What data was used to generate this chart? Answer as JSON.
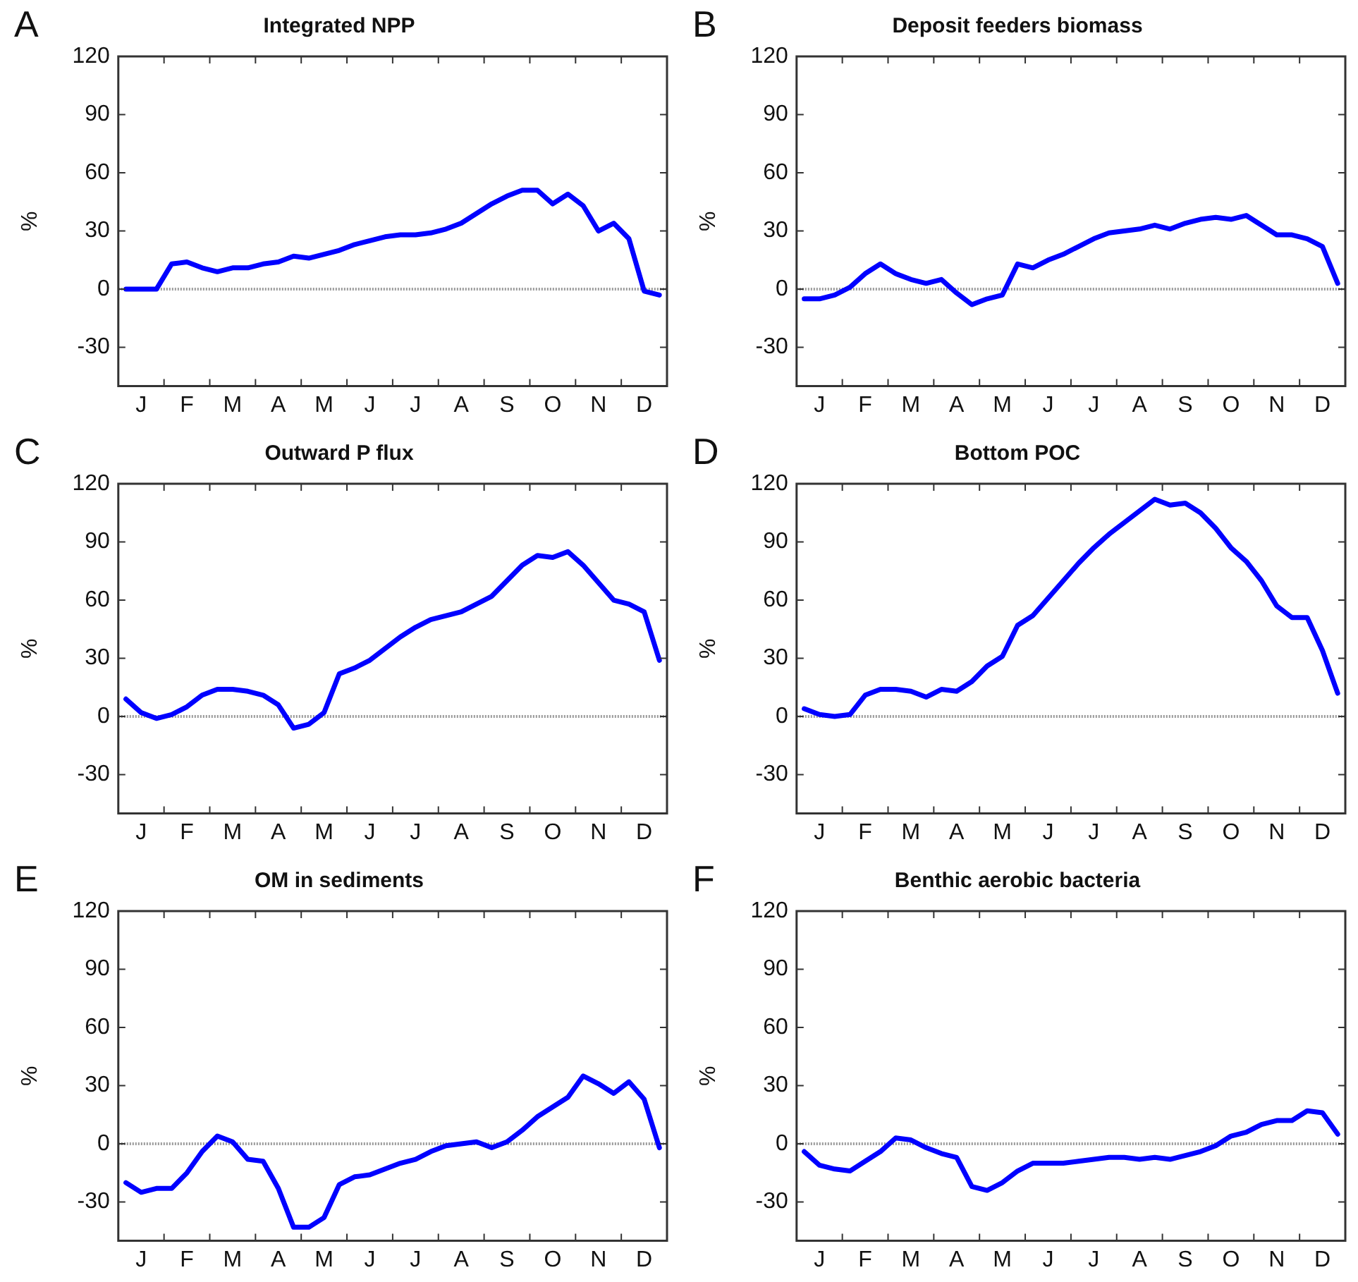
{
  "chart_data": [
    {
      "type": "line",
      "title": "Integrated NPP",
      "ylabel": "%",
      "annotations": [
        "A"
      ],
      "color": "#0000ff",
      "marker": "none",
      "legend": false,
      "grid": false,
      "ylim": [
        -50,
        120
      ],
      "yticks": [
        -30,
        0,
        30,
        60,
        90,
        120
      ],
      "categories": [
        null,
        "J",
        null,
        null,
        "F",
        null,
        null,
        "M",
        null,
        null,
        "A",
        null,
        null,
        "M",
        null,
        null,
        "J",
        null,
        null,
        "J",
        null,
        null,
        "A",
        null,
        null,
        "S",
        null,
        null,
        "O",
        null,
        null,
        "N",
        null,
        null,
        "D",
        null
      ],
      "ref_lines": [
        {
          "axis": "y",
          "value": 0,
          "color": "#999999",
          "line_style": "dotted"
        }
      ],
      "values": [
        0,
        0,
        0,
        13,
        14,
        11,
        9,
        11,
        11,
        13,
        14,
        17,
        16,
        18,
        20,
        23,
        25,
        27,
        28,
        28,
        29,
        31,
        34,
        39,
        44,
        48,
        51,
        51,
        44,
        49,
        43,
        30,
        34,
        26,
        -1,
        -3
      ]
    },
    {
      "type": "line",
      "title": "Deposit feeders biomass",
      "ylabel": "%",
      "annotations": [
        "B"
      ],
      "color": "#0000ff",
      "marker": "none",
      "legend": false,
      "grid": false,
      "ylim": [
        -50,
        120
      ],
      "yticks": [
        -30,
        0,
        30,
        60,
        90,
        120
      ],
      "categories": [
        null,
        "J",
        null,
        null,
        "F",
        null,
        null,
        "M",
        null,
        null,
        "A",
        null,
        null,
        "M",
        null,
        null,
        "J",
        null,
        null,
        "J",
        null,
        null,
        "A",
        null,
        null,
        "S",
        null,
        null,
        "O",
        null,
        null,
        "N",
        null,
        null,
        "D",
        null
      ],
      "ref_lines": [
        {
          "axis": "y",
          "value": 0,
          "color": "#999999",
          "line_style": "dotted"
        }
      ],
      "values": [
        -5,
        -5,
        -3,
        1,
        8,
        13,
        8,
        5,
        3,
        5,
        -2,
        -8,
        -5,
        -3,
        13,
        11,
        15,
        18,
        22,
        26,
        29,
        30,
        31,
        33,
        31,
        34,
        36,
        37,
        36,
        38,
        33,
        28,
        28,
        26,
        22,
        3
      ]
    },
    {
      "type": "line",
      "title": "Outward P flux",
      "ylabel": "%",
      "annotations": [
        "C"
      ],
      "color": "#0000ff",
      "marker": "none",
      "legend": false,
      "grid": false,
      "ylim": [
        -50,
        120
      ],
      "yticks": [
        -30,
        0,
        30,
        60,
        90,
        120
      ],
      "categories": [
        null,
        "J",
        null,
        null,
        "F",
        null,
        null,
        "M",
        null,
        null,
        "A",
        null,
        null,
        "M",
        null,
        null,
        "J",
        null,
        null,
        "J",
        null,
        null,
        "A",
        null,
        null,
        "S",
        null,
        null,
        "O",
        null,
        null,
        "N",
        null,
        null,
        "D",
        null
      ],
      "ref_lines": [
        {
          "axis": "y",
          "value": 0,
          "color": "#999999",
          "line_style": "dotted"
        }
      ],
      "values": [
        9,
        2,
        -1,
        1,
        5,
        11,
        14,
        14,
        13,
        11,
        6,
        -6,
        -4,
        2,
        22,
        25,
        29,
        35,
        41,
        46,
        50,
        52,
        54,
        58,
        62,
        70,
        78,
        83,
        82,
        85,
        78,
        69,
        60,
        58,
        54,
        29
      ]
    },
    {
      "type": "line",
      "title": "Bottom POC",
      "ylabel": "%",
      "annotations": [
        "D"
      ],
      "color": "#0000ff",
      "marker": "none",
      "legend": false,
      "grid": false,
      "ylim": [
        -50,
        120
      ],
      "yticks": [
        -30,
        0,
        30,
        60,
        90,
        120
      ],
      "categories": [
        null,
        "J",
        null,
        null,
        "F",
        null,
        null,
        "M",
        null,
        null,
        "A",
        null,
        null,
        "M",
        null,
        null,
        "J",
        null,
        null,
        "J",
        null,
        null,
        "A",
        null,
        null,
        "S",
        null,
        null,
        "O",
        null,
        null,
        "N",
        null,
        null,
        "D",
        null
      ],
      "ref_lines": [
        {
          "axis": "y",
          "value": 0,
          "color": "#999999",
          "line_style": "dotted"
        }
      ],
      "values": [
        4,
        1,
        0,
        1,
        11,
        14,
        14,
        13,
        10,
        14,
        13,
        18,
        26,
        31,
        47,
        52,
        61,
        70,
        79,
        87,
        94,
        100,
        106,
        112,
        109,
        110,
        105,
        97,
        87,
        80,
        70,
        57,
        51,
        51,
        34,
        12
      ]
    },
    {
      "type": "line",
      "title": "OM in sediments",
      "ylabel": "%",
      "annotations": [
        "E"
      ],
      "color": "#0000ff",
      "marker": "none",
      "legend": false,
      "grid": false,
      "ylim": [
        -50,
        120
      ],
      "yticks": [
        -30,
        0,
        30,
        60,
        90,
        120
      ],
      "categories": [
        null,
        "J",
        null,
        null,
        "F",
        null,
        null,
        "M",
        null,
        null,
        "A",
        null,
        null,
        "M",
        null,
        null,
        "J",
        null,
        null,
        "J",
        null,
        null,
        "A",
        null,
        null,
        "S",
        null,
        null,
        "O",
        null,
        null,
        "N",
        null,
        null,
        "D",
        null
      ],
      "ref_lines": [
        {
          "axis": "y",
          "value": 0,
          "color": "#999999",
          "line_style": "dotted"
        }
      ],
      "values": [
        -20,
        -25,
        -23,
        -23,
        -15,
        -4,
        4,
        1,
        -8,
        -9,
        -23,
        -43,
        -43,
        -38,
        -21,
        -17,
        -16,
        -13,
        -10,
        -8,
        -4,
        -1,
        0,
        1,
        -2,
        1,
        7,
        14,
        19,
        24,
        35,
        31,
        26,
        32,
        23,
        -2
      ]
    },
    {
      "type": "line",
      "title": "Benthic aerobic bacteria",
      "ylabel": "%",
      "annotations": [
        "F"
      ],
      "color": "#0000ff",
      "marker": "none",
      "legend": false,
      "grid": false,
      "ylim": [
        -50,
        120
      ],
      "yticks": [
        -30,
        0,
        30,
        60,
        90,
        120
      ],
      "categories": [
        null,
        "J",
        null,
        null,
        "F",
        null,
        null,
        "M",
        null,
        null,
        "A",
        null,
        null,
        "M",
        null,
        null,
        "J",
        null,
        null,
        "J",
        null,
        null,
        "A",
        null,
        null,
        "S",
        null,
        null,
        "O",
        null,
        null,
        "N",
        null,
        null,
        "D",
        null
      ],
      "ref_lines": [
        {
          "axis": "y",
          "value": 0,
          "color": "#999999",
          "line_style": "dotted"
        }
      ],
      "values": [
        -4,
        -11,
        -13,
        -14,
        -9,
        -4,
        3,
        2,
        -2,
        -5,
        -7,
        -22,
        -24,
        -20,
        -14,
        -10,
        -10,
        -10,
        -9,
        -8,
        -7,
        -7,
        -8,
        -7,
        -8,
        -6,
        -4,
        -1,
        4,
        6,
        10,
        12,
        12,
        17,
        16,
        5
      ]
    }
  ]
}
